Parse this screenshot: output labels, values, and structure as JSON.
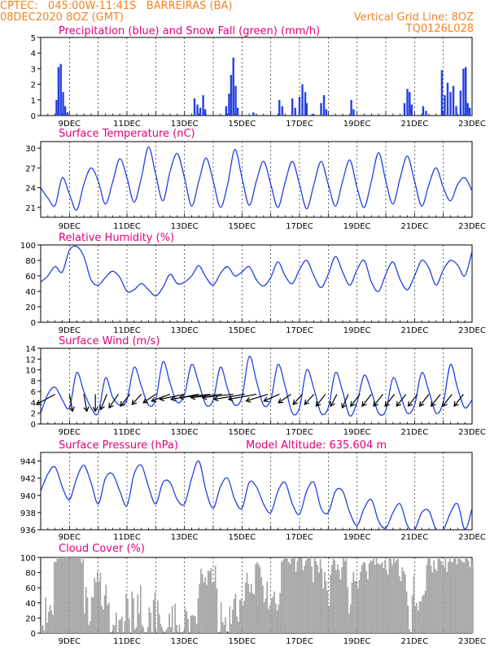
{
  "header": {
    "line1": "CPTEC:   045:00W-11:41S   BARREIRAS (BA)",
    "line2": "08DEC2020 8OZ (GMT)",
    "grid_note": "Vertical Grid Line: 8OZ",
    "code": "TQ0126L028"
  },
  "colors": {
    "header": "#f58220",
    "panel_title": "#e0007a",
    "line": "#2540e0",
    "bar": "#2540e0",
    "snow": "#00b050",
    "cloud": "#a8a8a8"
  },
  "date_labels": [
    "9DEC",
    "11DEC",
    "13DEC",
    "15DEC",
    "17DEC",
    "19DEC",
    "21DEC",
    "23DEC"
  ],
  "chart_data": [
    {
      "type": "bar",
      "id": "precip",
      "title": "Precipitation (blue) and Snow Fall (green) (mm/h)",
      "ylim": [
        0,
        5
      ],
      "yticks": [
        0,
        1,
        2,
        3,
        4,
        5
      ],
      "series": [
        {
          "name": "Precipitation",
          "x": [
            8.55,
            8.62,
            8.7,
            8.78,
            8.85,
            8.93,
            13.35,
            13.45,
            13.55,
            13.65,
            13.72,
            14.45,
            14.55,
            14.62,
            14.7,
            14.78,
            14.85,
            15.4,
            16.3,
            16.4,
            16.75,
            16.85,
            17.0,
            17.1,
            17.2,
            17.25,
            17.45,
            17.75,
            17.85,
            17.93,
            18.8,
            18.88,
            20.65,
            20.75,
            20.83,
            20.9,
            21.3,
            21.4,
            21.95,
            22.05,
            22.15,
            22.25,
            22.35,
            22.45,
            22.6,
            22.7,
            22.78,
            22.85,
            22.92
          ],
          "values": [
            1.0,
            3.1,
            3.3,
            1.5,
            0.6,
            0.2,
            1.1,
            0.7,
            0.5,
            1.3,
            0.4,
            0.6,
            1.4,
            2.6,
            3.7,
            1.9,
            0.5,
            0.2,
            1.0,
            0.6,
            1.1,
            0.5,
            1.2,
            2.0,
            1.5,
            0.8,
            0.1,
            0.8,
            1.3,
            0.4,
            1.0,
            0.4,
            0.8,
            1.7,
            1.5,
            0.7,
            0.6,
            0.3,
            2.9,
            1.3,
            2.1,
            1.5,
            1.9,
            0.6,
            1.6,
            3.0,
            3.1,
            0.8,
            0.5
          ]
        },
        {
          "name": "Snow Fall",
          "x": [],
          "values": []
        }
      ]
    },
    {
      "type": "line",
      "id": "temp",
      "title": "Surface Temperature (nC)",
      "ylim": [
        19.5,
        31
      ],
      "yticks": [
        21,
        24,
        27,
        30
      ],
      "x": [
        8.0,
        8.25,
        8.5,
        8.75,
        9.0,
        9.25,
        9.5,
        9.75,
        10.0,
        10.25,
        10.5,
        10.75,
        11.0,
        11.25,
        11.5,
        11.75,
        12.0,
        12.25,
        12.5,
        12.75,
        13.0,
        13.25,
        13.5,
        13.75,
        14.0,
        14.25,
        14.5,
        14.75,
        15.0,
        15.25,
        15.5,
        15.75,
        16.0,
        16.25,
        16.5,
        16.75,
        17.0,
        17.25,
        17.5,
        17.75,
        18.0,
        18.25,
        18.5,
        18.75,
        19.0,
        19.25,
        19.5,
        19.75,
        20.0,
        20.25,
        20.5,
        20.75,
        21.0,
        21.25,
        21.5,
        21.75,
        22.0,
        22.25,
        22.5,
        22.75,
        23.0
      ],
      "series": [
        {
          "name": "Surface Temperature",
          "values": [
            24.0,
            22.4,
            21.3,
            25.5,
            23.0,
            20.6,
            24.5,
            27.0,
            25.0,
            21.5,
            24.8,
            28.4,
            25.5,
            21.8,
            25.5,
            30.2,
            26.0,
            22.0,
            26.5,
            29.2,
            25.5,
            21.2,
            25.0,
            28.5,
            25.0,
            21.0,
            24.5,
            29.8,
            25.5,
            21.3,
            25.0,
            28.0,
            24.5,
            21.0,
            24.8,
            28.0,
            24.5,
            20.8,
            24.5,
            28.0,
            24.5,
            21.2,
            25.0,
            28.2,
            24.0,
            21.0,
            25.0,
            29.3,
            25.0,
            21.5,
            25.5,
            28.8,
            25.0,
            21.2,
            24.5,
            27.0,
            24.0,
            22.0,
            24.5,
            25.5,
            23.5
          ]
        }
      ]
    },
    {
      "type": "line",
      "id": "rh",
      "title": "Relative Humidity (%)",
      "ylim": [
        0,
        100
      ],
      "yticks": [
        0,
        20,
        40,
        60,
        80,
        100
      ],
      "x": [
        8.0,
        8.25,
        8.5,
        8.75,
        9.0,
        9.25,
        9.5,
        9.75,
        10.0,
        10.25,
        10.5,
        10.75,
        11.0,
        11.25,
        11.5,
        11.75,
        12.0,
        12.25,
        12.5,
        12.75,
        13.0,
        13.25,
        13.5,
        13.75,
        14.0,
        14.25,
        14.5,
        14.75,
        15.0,
        15.25,
        15.5,
        15.75,
        16.0,
        16.25,
        16.5,
        16.75,
        17.0,
        17.25,
        17.5,
        17.75,
        18.0,
        18.25,
        18.5,
        18.75,
        19.0,
        19.25,
        19.5,
        19.75,
        20.0,
        20.25,
        20.5,
        20.75,
        21.0,
        21.25,
        21.5,
        21.75,
        22.0,
        22.25,
        22.5,
        22.75,
        23.0
      ],
      "series": [
        {
          "name": "Relative Humidity",
          "values": [
            52,
            60,
            72,
            65,
            93,
            98,
            85,
            55,
            48,
            58,
            66,
            58,
            40,
            42,
            50,
            42,
            34,
            45,
            62,
            50,
            52,
            60,
            73,
            58,
            48,
            63,
            72,
            60,
            65,
            72,
            55,
            47,
            58,
            78,
            60,
            50,
            68,
            80,
            60,
            45,
            62,
            85,
            65,
            48,
            68,
            80,
            52,
            40,
            62,
            78,
            55,
            42,
            60,
            80,
            70,
            48,
            68,
            80,
            74,
            60,
            92
          ]
        }
      ]
    },
    {
      "type": "line",
      "id": "wind",
      "title": "Surface Wind (m/s)",
      "ylim": [
        0,
        14
      ],
      "yticks": [
        0,
        2,
        4,
        6,
        8,
        10,
        12,
        14
      ],
      "x": [
        8.0,
        8.25,
        8.5,
        8.75,
        9.0,
        9.25,
        9.5,
        9.75,
        10.0,
        10.25,
        10.5,
        10.75,
        11.0,
        11.25,
        11.5,
        11.75,
        12.0,
        12.25,
        12.5,
        12.75,
        13.0,
        13.25,
        13.5,
        13.75,
        14.0,
        14.25,
        14.5,
        14.75,
        15.0,
        15.25,
        15.5,
        15.75,
        16.0,
        16.25,
        16.5,
        16.75,
        17.0,
        17.25,
        17.5,
        17.75,
        18.0,
        18.25,
        18.5,
        18.75,
        19.0,
        19.25,
        19.5,
        19.75,
        20.0,
        20.25,
        20.5,
        20.75,
        21.0,
        21.25,
        21.5,
        21.75,
        22.0,
        22.25,
        22.5,
        22.75,
        23.0
      ],
      "series": [
        {
          "name": "Surface Wind",
          "values": [
            2.0,
            5.5,
            6.8,
            4.5,
            3.0,
            9.5,
            6.0,
            3.0,
            2.0,
            8.5,
            5.0,
            3.5,
            4.5,
            10.5,
            7.0,
            3.5,
            4.5,
            11.5,
            7.5,
            4.0,
            5.5,
            11.0,
            7.5,
            3.5,
            4.5,
            10.5,
            6.5,
            3.5,
            5.0,
            12.5,
            8.0,
            3.5,
            4.5,
            11.0,
            7.0,
            2.0,
            3.0,
            10.0,
            6.5,
            2.0,
            3.0,
            9.5,
            6.0,
            1.5,
            4.0,
            9.0,
            6.0,
            2.0,
            2.5,
            8.5,
            5.5,
            2.0,
            3.5,
            9.5,
            6.0,
            2.0,
            4.0,
            11.0,
            6.5,
            3.0,
            4.5
          ]
        }
      ],
      "arrows_note": "wind direction vectors",
      "arrow_times": [
        8.5,
        9.0,
        9.5,
        9.9,
        10.3,
        10.7,
        11.1,
        11.5,
        12.0,
        12.5,
        13.0,
        13.5,
        13.9,
        14.3,
        14.7,
        15.1,
        15.5,
        15.9,
        16.3,
        16.7,
        17.1,
        17.5,
        17.9,
        18.3,
        18.7,
        19.1,
        19.5,
        19.9,
        20.3,
        20.7,
        21.1,
        21.5,
        21.9,
        22.3,
        22.7
      ],
      "arrow_dx": [
        -0.6,
        0.1,
        0.1,
        0.0,
        -0.2,
        -0.3,
        -0.3,
        -0.3,
        -0.4,
        -0.6,
        -0.8,
        -0.9,
        -1.0,
        -1.0,
        -1.0,
        -1.0,
        -0.9,
        -0.7,
        -0.5,
        -0.4,
        -0.3,
        -0.3,
        -0.3,
        -0.2,
        -0.2,
        -0.3,
        -0.3,
        -0.3,
        -0.3,
        -0.3,
        -0.3,
        -0.3,
        -0.3,
        -0.3,
        -0.3
      ],
      "arrow_dy": [
        -0.6,
        -1.0,
        -1.0,
        -1.0,
        -0.9,
        -0.8,
        -0.7,
        -0.6,
        -0.5,
        -0.4,
        -0.3,
        -0.3,
        -0.2,
        -0.2,
        -0.2,
        -0.3,
        -0.3,
        -0.4,
        -0.4,
        -0.5,
        -0.6,
        -0.6,
        -0.7,
        -0.7,
        -0.8,
        -0.7,
        -0.7,
        -0.7,
        -0.7,
        -0.7,
        -0.7,
        -0.7,
        -0.7,
        -0.7,
        -0.7
      ]
    },
    {
      "type": "line",
      "id": "pres",
      "title": "Surface Pressure (hPa)",
      "subtitle": "Model Altitude: 635.604 m",
      "ylim": [
        936,
        945
      ],
      "yticks": [
        936,
        938,
        940,
        942,
        944
      ],
      "x": [
        8.0,
        8.25,
        8.5,
        8.75,
        9.0,
        9.25,
        9.5,
        9.75,
        10.0,
        10.25,
        10.5,
        10.75,
        11.0,
        11.25,
        11.5,
        11.75,
        12.0,
        12.25,
        12.5,
        12.75,
        13.0,
        13.25,
        13.5,
        13.75,
        14.0,
        14.25,
        14.5,
        14.75,
        15.0,
        15.25,
        15.5,
        15.75,
        16.0,
        16.25,
        16.5,
        16.75,
        17.0,
        17.25,
        17.5,
        17.75,
        18.0,
        18.25,
        18.5,
        18.75,
        19.0,
        19.25,
        19.5,
        19.75,
        20.0,
        20.25,
        20.5,
        20.75,
        21.0,
        21.25,
        21.5,
        21.75,
        22.0,
        22.25,
        22.5,
        22.75,
        23.0
      ],
      "series": [
        {
          "name": "Surface Pressure",
          "values": [
            940.5,
            942.5,
            943.3,
            941.0,
            939.5,
            942.0,
            943.5,
            941.5,
            939.0,
            942.0,
            942.5,
            940.5,
            938.8,
            942.5,
            943.5,
            941.0,
            939.0,
            941.5,
            941.5,
            939.5,
            939.0,
            942.0,
            944.0,
            940.5,
            938.5,
            941.0,
            942.0,
            939.5,
            938.5,
            941.5,
            941.0,
            939.0,
            938.0,
            940.5,
            941.5,
            939.0,
            937.8,
            940.5,
            941.5,
            938.5,
            938.0,
            940.5,
            940.5,
            938.0,
            936.5,
            938.5,
            939.5,
            937.0,
            936.2,
            938.0,
            939.0,
            936.5,
            936.0,
            938.0,
            938.2,
            936.0,
            936.0,
            938.0,
            939.0,
            936.0,
            938.5
          ]
        }
      ]
    },
    {
      "type": "bar",
      "id": "cloud",
      "title": "Cloud Cover (%)",
      "ylim": [
        0,
        100
      ],
      "yticks": [
        0,
        20,
        40,
        60,
        80,
        100
      ],
      "x_step_days": 0.05,
      "x_start": 8.0,
      "series": [
        {
          "name": "Cloud Cover",
          "values": [
            10,
            10,
            3,
            47,
            14,
            28,
            37,
            30,
            24,
            94,
            94,
            100,
            98,
            100,
            100,
            98,
            100,
            100,
            100,
            100,
            99,
            100,
            100,
            100,
            100,
            100,
            100,
            100,
            93,
            98,
            26,
            61,
            47,
            11,
            16,
            48,
            47,
            73,
            67,
            81,
            68,
            80,
            36,
            31,
            50,
            64,
            37,
            40,
            0,
            0,
            11,
            10,
            27,
            0,
            17,
            18,
            22,
            0,
            16,
            52,
            45,
            19,
            0,
            55,
            46,
            5,
            8,
            51,
            26,
            63,
            11,
            8,
            0,
            0,
            8,
            34,
            27,
            0,
            44,
            54,
            0,
            43,
            25,
            12,
            8,
            0,
            2,
            5,
            8,
            26,
            8,
            36,
            0,
            39,
            11,
            0,
            11,
            0,
            0,
            3,
            33,
            29,
            19,
            0,
            23,
            24,
            23,
            22,
            12,
            46,
            65,
            85,
            78,
            67,
            74,
            64,
            83,
            81,
            86,
            66,
            68,
            89,
            59,
            0,
            0,
            41,
            15,
            11,
            21,
            0,
            0,
            35,
            12,
            31,
            45,
            52,
            22,
            15,
            44,
            45,
            37,
            43,
            67,
            80,
            65,
            54,
            65,
            53,
            51,
            91,
            94,
            91,
            87,
            74,
            63,
            41,
            46,
            68,
            32,
            37,
            46,
            48,
            55,
            39,
            30,
            38,
            53,
            94,
            96,
            100,
            100,
            100,
            94,
            91,
            100,
            100,
            99,
            81,
            95,
            99,
            99,
            99,
            83,
            89,
            96,
            100,
            100,
            100,
            88,
            67,
            100,
            95,
            90,
            80,
            98,
            85,
            59,
            81,
            69,
            56,
            36,
            77,
            90,
            100,
            96,
            83,
            91,
            84,
            71,
            87,
            99,
            95,
            98,
            61,
            26,
            38,
            67,
            81,
            69,
            69,
            59,
            70,
            81,
            90,
            94,
            93,
            82,
            71,
            92,
            96,
            95,
            100,
            90,
            99,
            92,
            91,
            91,
            94,
            86,
            97,
            83,
            77,
            99,
            98,
            90,
            100,
            94,
            97,
            98,
            75,
            69,
            87,
            82,
            78,
            55,
            36,
            5,
            0,
            50,
            76,
            36,
            40,
            30,
            42,
            42,
            49,
            51,
            56,
            90,
            100,
            100,
            89,
            80,
            96,
            85,
            82,
            100,
            98,
            95,
            91,
            87,
            100,
            81,
            94,
            100,
            94,
            94,
            100,
            100,
            91,
            100,
            98,
            96,
            94,
            93,
            100,
            100,
            96,
            87,
            95,
            94,
            93,
            82,
            62,
            98,
            100,
            95,
            71
          ]
        }
      ]
    }
  ]
}
